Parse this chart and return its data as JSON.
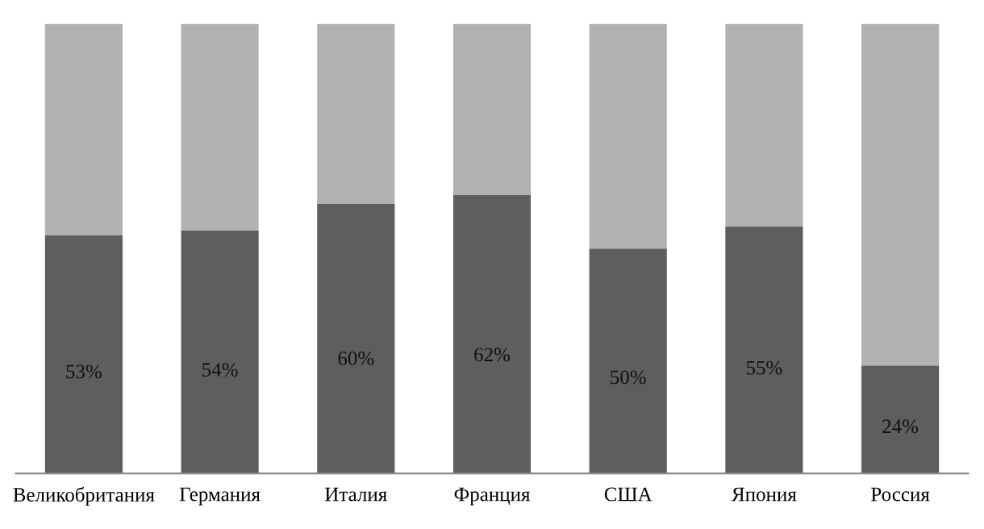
{
  "chart_data": {
    "type": "bar",
    "stacked": true,
    "categories": [
      "Великобритания",
      "Германия",
      "Италия",
      "Франция",
      "США",
      "Япония",
      "Россия"
    ],
    "series": [
      {
        "color": "#5e5e5e",
        "values": [
          53,
          54,
          60,
          62,
          50,
          55,
          24
        ],
        "value_labels": [
          "53%",
          "54%",
          "60%",
          "62%",
          "50%",
          "55%",
          "24%"
        ]
      },
      {
        "color": "#b2b2b2",
        "values": [
          47,
          46,
          40,
          38,
          50,
          45,
          76
        ]
      }
    ]
  }
}
